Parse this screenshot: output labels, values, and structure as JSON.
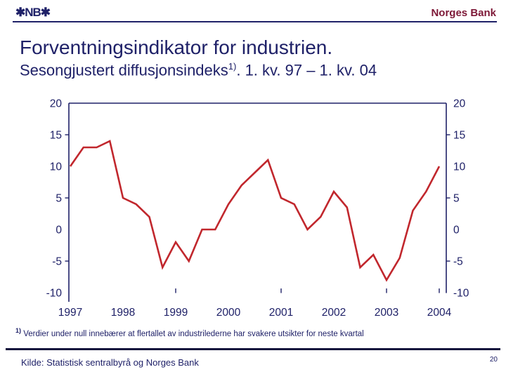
{
  "header": {
    "logo_text": "✱NB✱",
    "bank_name": "Norges Bank"
  },
  "title": "Forventningsindikator for industrien.",
  "subtitle": {
    "before_sup": "Sesongjustert diffusjonsindeks",
    "sup": "1)",
    "after_sup": ". 1. kv. 97 – 1. kv. 04"
  },
  "chart_data": {
    "type": "line",
    "title": "Forventningsindikator for industrien",
    "x": [
      "1997K1",
      "1997K2",
      "1997K3",
      "1997K4",
      "1998K1",
      "1998K2",
      "1998K3",
      "1998K4",
      "1999K1",
      "1999K2",
      "1999K3",
      "1999K4",
      "2000K1",
      "2000K2",
      "2000K3",
      "2000K4",
      "2001K1",
      "2001K2",
      "2001K3",
      "2001K4",
      "2002K1",
      "2002K2",
      "2002K3",
      "2002K4",
      "2003K1",
      "2003K2",
      "2003K3",
      "2003K4",
      "2004K1"
    ],
    "series": [
      {
        "name": "Forventningsindikator, sesongjustert diffusjonsindeks",
        "values": [
          10,
          13,
          13,
          14,
          5,
          4,
          2,
          -6,
          -2,
          -5,
          0,
          0,
          4,
          7,
          9,
          11,
          5,
          4,
          0,
          2,
          6,
          3.5,
          -6,
          -4,
          -8,
          -4.5,
          3,
          6,
          10
        ]
      }
    ],
    "xticklabels": [
      "1997",
      "1998",
      "1999",
      "2000",
      "2001",
      "2002",
      "2003",
      "2004"
    ],
    "yticks": [
      20,
      15,
      10,
      5,
      0,
      -5,
      -10
    ],
    "ylim": [
      -10,
      20
    ],
    "layout_hints": {
      "legend": "none",
      "grid": "off",
      "y_axis_sides": "both",
      "y_tick_marks": [
        15,
        5,
        -5
      ],
      "x_tick_mark_years": [
        "1999",
        "2001",
        "2003",
        "2004"
      ]
    },
    "line_color": "#c1272d",
    "axis_color": "#1f2168"
  },
  "footnote": {
    "sup": "1)",
    "text": " Verdier under null innebærer at flertallet av industrilederne har svakere utsikter for neste kvartal"
  },
  "footer": {
    "source": "Kilde: Statistisk sentralbyrå og Norges Bank",
    "page_number": "20"
  },
  "colors": {
    "navy": "#1f2168",
    "maroon": "#7d1837",
    "line_red": "#c1272d"
  }
}
